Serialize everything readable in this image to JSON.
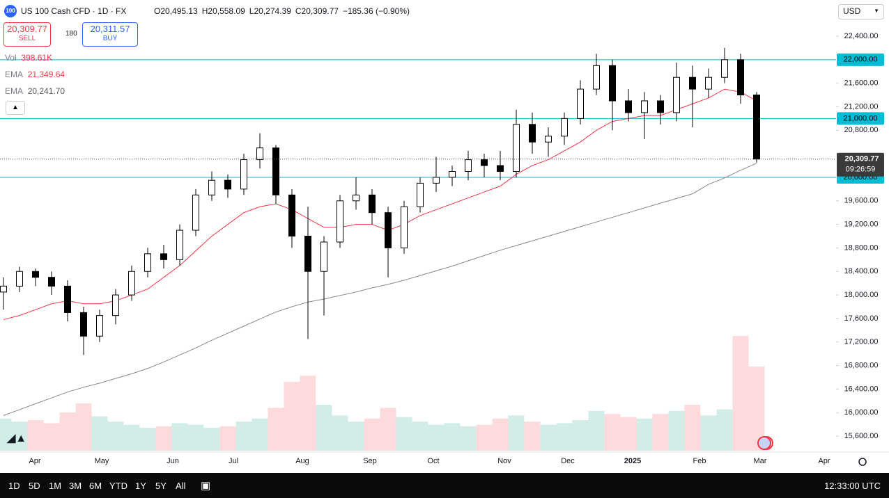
{
  "header": {
    "logo": "100",
    "symbol": "US 100 Cash CFD · 1D · FX",
    "ohlc": [
      {
        "key": "O",
        "value": "20,495.13"
      },
      {
        "key": "H",
        "value": "20,558.09"
      },
      {
        "key": "L",
        "value": "20,274.39"
      },
      {
        "key": "C",
        "value": "20,309.77"
      }
    ],
    "change": "−185.36 (−0.90%)",
    "sell": {
      "price": "20,309.77",
      "label": "SELL"
    },
    "spread": "180",
    "buy": {
      "price": "20,311.57",
      "label": "BUY"
    },
    "indicators": [
      {
        "name": "Vol",
        "value": "398.61K"
      },
      {
        "name": "EMA",
        "value": "21,349.64"
      },
      {
        "name": "EMA",
        "value": "20,241.70"
      }
    ],
    "currency": "USD"
  },
  "toolbar": {
    "ranges": [
      "1D",
      "5D",
      "1M",
      "3M",
      "6M",
      "YTD",
      "1Y",
      "5Y",
      "All"
    ],
    "time": "12:33:00 UTC"
  },
  "chart_data": {
    "type": "candlestick",
    "x_axis_labels": [
      "Apr",
      "May",
      "Jun",
      "Jul",
      "Aug",
      "Sep",
      "Oct",
      "Nov",
      "Dec",
      "2025",
      "Feb",
      "Mar",
      "Apr"
    ],
    "open": [
      18050,
      18150,
      18400,
      18300,
      18150,
      17700,
      17300,
      17650,
      18000,
      18400,
      18700,
      18600,
      19100,
      19700,
      19950,
      19800,
      20300,
      20500,
      19700,
      19000,
      18400,
      18900,
      19600,
      19700,
      19400,
      18800,
      19500,
      19900,
      20000,
      20100,
      20300,
      20200,
      20100,
      20900,
      20600,
      20700,
      21000,
      21500,
      21900,
      21300,
      21100,
      21300,
      21100,
      21700,
      21500,
      21700,
      22000,
      21400
    ],
    "high": [
      18300,
      18480,
      18450,
      18400,
      18250,
      17800,
      17750,
      18100,
      18500,
      18800,
      18850,
      19200,
      19800,
      20100,
      20050,
      20400,
      20750,
      20550,
      19800,
      19500,
      19000,
      19700,
      20000,
      19800,
      19500,
      19600,
      20000,
      20350,
      20200,
      20450,
      20400,
      20450,
      21150,
      21100,
      20850,
      21100,
      21650,
      22100,
      22000,
      21500,
      21450,
      21400,
      21950,
      21900,
      21850,
      22200,
      22100,
      21450
    ],
    "low": [
      17750,
      18050,
      18150,
      18000,
      17550,
      16980,
      17200,
      17500,
      17900,
      18300,
      18450,
      18500,
      19000,
      19600,
      19650,
      19700,
      20150,
      19550,
      18800,
      17250,
      17650,
      18800,
      19450,
      19200,
      18300,
      18700,
      19400,
      19750,
      19850,
      19950,
      20000,
      19950,
      20000,
      20400,
      20350,
      20550,
      20900,
      21400,
      20800,
      20950,
      20650,
      20900,
      20950,
      20850,
      21350,
      21600,
      21250,
      20250
    ],
    "close": [
      18150,
      18400,
      18300,
      18150,
      17700,
      17300,
      17650,
      18000,
      18400,
      18700,
      18600,
      19100,
      19700,
      19950,
      19800,
      20300,
      20500,
      19700,
      19000,
      18400,
      18900,
      19600,
      19700,
      19400,
      18800,
      19500,
      19900,
      20000,
      20100,
      20300,
      20200,
      20100,
      20900,
      20600,
      20700,
      21000,
      21500,
      21900,
      21300,
      21100,
      21300,
      21100,
      21700,
      21500,
      21700,
      22000,
      21400,
      20310
    ],
    "volume": [
      420,
      380,
      400,
      360,
      500,
      620,
      450,
      380,
      340,
      300,
      320,
      360,
      340,
      300,
      320,
      380,
      420,
      560,
      900,
      980,
      600,
      460,
      380,
      420,
      560,
      440,
      380,
      340,
      360,
      320,
      340,
      420,
      460,
      380,
      340,
      360,
      400,
      520,
      480,
      440,
      420,
      480,
      520,
      600,
      460,
      540,
      1500,
      1100
    ],
    "series": [
      {
        "color": "#f23645",
        "values": [
          17580,
          17650,
          17750,
          17850,
          17900,
          17850,
          17850,
          17900,
          18000,
          18100,
          18300,
          18500,
          18750,
          19000,
          19200,
          19400,
          19500,
          19550,
          19450,
          19300,
          19150,
          19150,
          19200,
          19200,
          19100,
          19200,
          19350,
          19450,
          19550,
          19650,
          19750,
          19850,
          20050,
          20200,
          20300,
          20450,
          20600,
          20800,
          20950,
          21000,
          21050,
          21050,
          21150,
          21250,
          21350,
          21500,
          21450,
          21300
        ]
      },
      {
        "color": "#888888",
        "values": [
          15950,
          16050,
          16150,
          16250,
          16350,
          16430,
          16500,
          16580,
          16660,
          16750,
          16860,
          16980,
          17100,
          17230,
          17350,
          17470,
          17590,
          17710,
          17800,
          17880,
          17930,
          17990,
          18050,
          18120,
          18180,
          18250,
          18330,
          18410,
          18490,
          18580,
          18670,
          18760,
          18840,
          18920,
          19000,
          19080,
          19160,
          19240,
          19320,
          19400,
          19480,
          19560,
          19640,
          19720,
          19880,
          19990,
          20120,
          20240
        ]
      }
    ],
    "ylim": [
      15400,
      22600
    ],
    "yticks": [
      {
        "value": 22400,
        "label": "22,400.00"
      },
      {
        "value": 21600,
        "label": "21,600.00"
      },
      {
        "value": 21200,
        "label": "21,200.00"
      },
      {
        "value": 20800,
        "label": "20,800.00"
      },
      {
        "value": 19600,
        "label": "19,600.00"
      },
      {
        "value": 19200,
        "label": "19,200.00"
      },
      {
        "value": 18800,
        "label": "18,800.00"
      },
      {
        "value": 18400,
        "label": "18,400.00"
      },
      {
        "value": 18000,
        "label": "18,000.00"
      },
      {
        "value": 17600,
        "label": "17,600.00"
      },
      {
        "value": 17200,
        "label": "17,200.00"
      },
      {
        "value": 16800,
        "label": "16,800.00"
      },
      {
        "value": 16400,
        "label": "16,400.00"
      },
      {
        "value": 16000,
        "label": "16,000.00"
      },
      {
        "value": 15600,
        "label": "15,600.00"
      }
    ],
    "levels": [
      {
        "value": 22000,
        "label": "22,000.00"
      },
      {
        "value": 21000,
        "label": "21,000.00"
      },
      {
        "value": 20000,
        "label": "20,000.00"
      }
    ],
    "last_price": {
      "value": 20309.77,
      "label": "20,309.77"
    },
    "countdown": "09:26:59"
  }
}
